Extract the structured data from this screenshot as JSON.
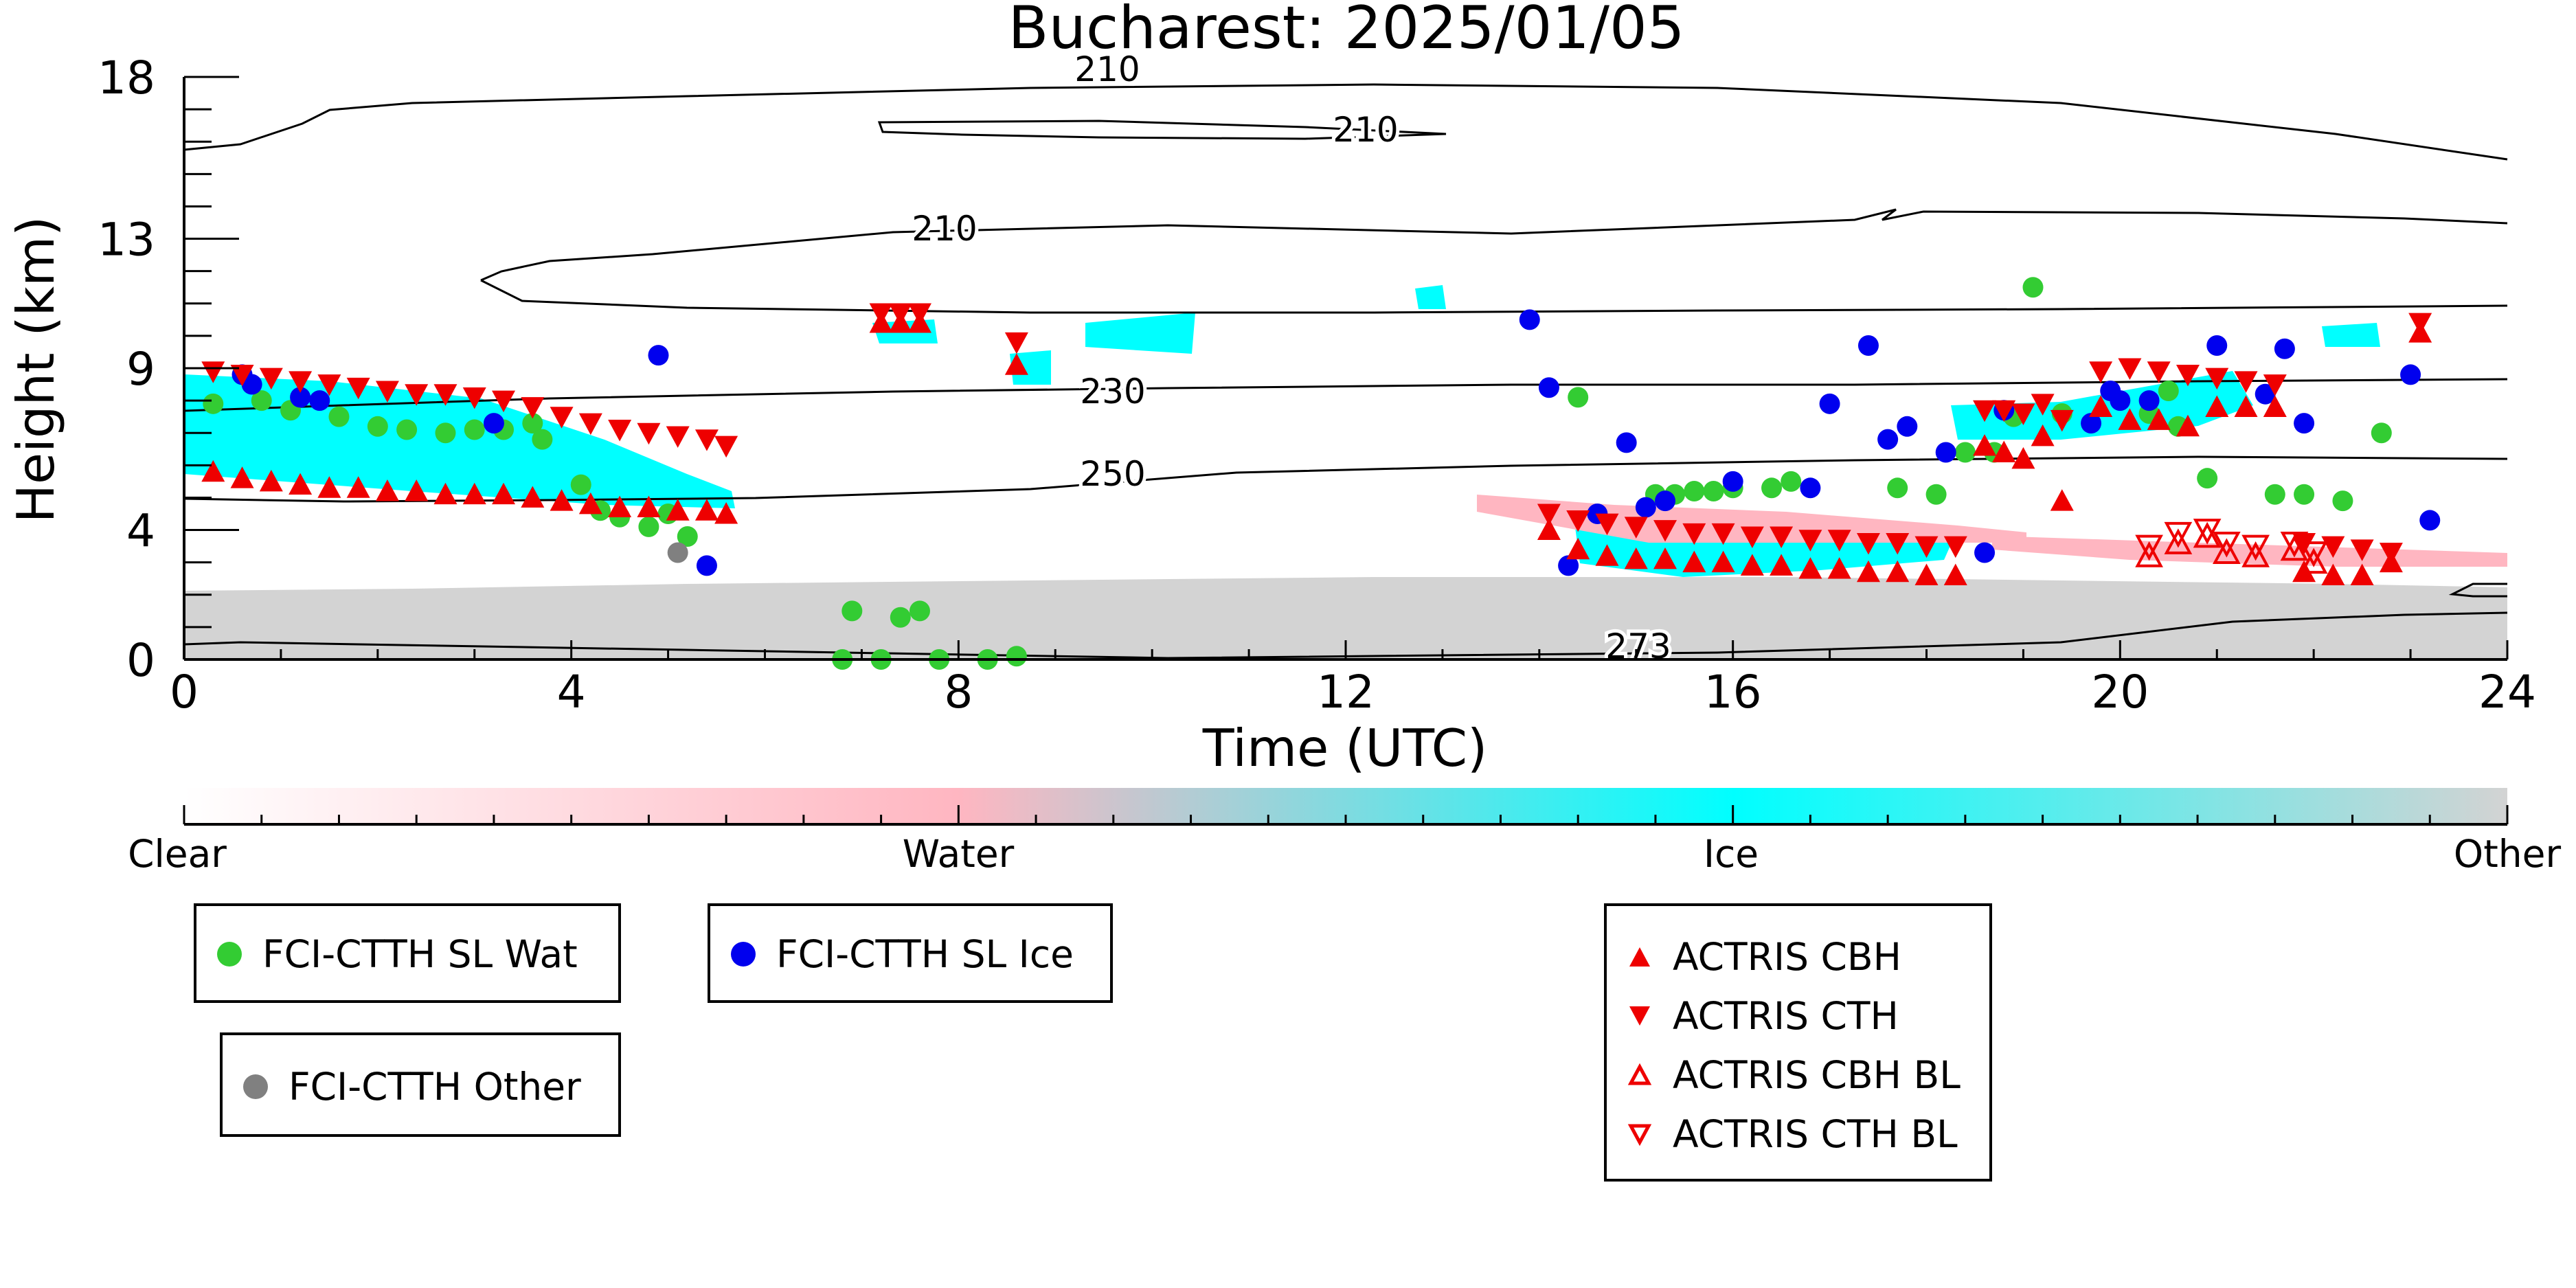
{
  "chart_data": {
    "type": "scatter",
    "title": "Bucharest: 2025/01/05",
    "xlabel": "Time (UTC)",
    "ylabel": "Height (km)",
    "xlim": [
      0,
      24
    ],
    "ylim": [
      0,
      18
    ],
    "x_ticks": [
      0,
      4,
      8,
      12,
      16,
      20,
      24
    ],
    "y_ticks": [
      0,
      4,
      9,
      13,
      18
    ],
    "grid": false,
    "colorbar": {
      "labels": [
        "Clear",
        "Water",
        "Ice",
        "Other"
      ],
      "colors": [
        "#ffffff",
        "#ffb6c1",
        "#00ffff",
        "#d3d3d3"
      ]
    },
    "contour_labels": [
      "210",
      "210",
      "210",
      "230",
      "250",
      "273"
    ],
    "series": [
      {
        "name": "FCI-CTTH SL Wat",
        "color": "#33cc33",
        "marker": "circle",
        "points": [
          [
            0.3,
            7.9
          ],
          [
            0.8,
            8.0
          ],
          [
            1.1,
            7.7
          ],
          [
            1.6,
            7.5
          ],
          [
            2.0,
            7.2
          ],
          [
            2.3,
            7.1
          ],
          [
            2.7,
            7.0
          ],
          [
            3.0,
            7.1
          ],
          [
            3.3,
            7.1
          ],
          [
            3.6,
            7.3
          ],
          [
            3.7,
            6.8
          ],
          [
            4.1,
            5.4
          ],
          [
            4.3,
            4.6
          ],
          [
            4.5,
            4.4
          ],
          [
            4.8,
            4.1
          ],
          [
            5.0,
            4.5
          ],
          [
            5.2,
            3.8
          ],
          [
            6.8,
            0.0
          ],
          [
            6.9,
            1.5
          ],
          [
            7.2,
            0.0
          ],
          [
            7.4,
            1.3
          ],
          [
            7.6,
            1.5
          ],
          [
            7.8,
            0.0
          ],
          [
            8.3,
            0.0
          ],
          [
            8.6,
            0.1
          ],
          [
            14.4,
            8.1
          ],
          [
            15.2,
            5.1
          ],
          [
            15.4,
            5.1
          ],
          [
            15.6,
            5.2
          ],
          [
            15.8,
            5.2
          ],
          [
            16.0,
            5.3
          ],
          [
            16.4,
            5.3
          ],
          [
            16.6,
            5.5
          ],
          [
            17.7,
            5.3
          ],
          [
            18.1,
            5.1
          ],
          [
            18.4,
            6.4
          ],
          [
            18.7,
            6.4
          ],
          [
            18.9,
            7.5
          ],
          [
            19.1,
            11.5
          ],
          [
            19.4,
            7.6
          ],
          [
            20.3,
            7.6
          ],
          [
            20.5,
            8.3
          ],
          [
            20.6,
            7.2
          ],
          [
            20.9,
            5.6
          ],
          [
            21.6,
            5.1
          ],
          [
            21.9,
            5.1
          ],
          [
            22.3,
            4.9
          ],
          [
            22.7,
            7.0
          ]
        ]
      },
      {
        "name": "FCI-CTTH SL Ice",
        "color": "#0000ee",
        "marker": "circle",
        "points": [
          [
            0.6,
            8.8
          ],
          [
            0.7,
            8.5
          ],
          [
            1.2,
            8.1
          ],
          [
            1.4,
            8.0
          ],
          [
            3.2,
            7.3
          ],
          [
            4.9,
            9.4
          ],
          [
            5.4,
            2.9
          ],
          [
            13.9,
            10.5
          ],
          [
            14.1,
            8.4
          ],
          [
            14.3,
            2.9
          ],
          [
            14.6,
            4.5
          ],
          [
            14.9,
            6.7
          ],
          [
            15.1,
            4.7
          ],
          [
            15.3,
            4.9
          ],
          [
            16.0,
            5.5
          ],
          [
            16.8,
            5.3
          ],
          [
            17.0,
            7.9
          ],
          [
            17.4,
            9.7
          ],
          [
            17.6,
            6.8
          ],
          [
            17.8,
            7.2
          ],
          [
            18.2,
            6.4
          ],
          [
            18.6,
            3.3
          ],
          [
            18.8,
            7.7
          ],
          [
            19.7,
            7.3
          ],
          [
            19.9,
            8.3
          ],
          [
            20.0,
            8.0
          ],
          [
            20.3,
            8.0
          ],
          [
            21.0,
            9.7
          ],
          [
            21.5,
            8.2
          ],
          [
            21.7,
            9.6
          ],
          [
            21.9,
            7.3
          ],
          [
            23.0,
            8.8
          ],
          [
            23.2,
            4.3
          ]
        ]
      },
      {
        "name": "FCI-CTTH Other",
        "color": "#808080",
        "marker": "circle",
        "points": [
          [
            5.1,
            3.3
          ]
        ]
      },
      {
        "name": "ACTRIS CBH",
        "color": "#ee0000",
        "marker": "triangle-up",
        "points": [
          [
            0.3,
            5.8
          ],
          [
            0.6,
            5.6
          ],
          [
            0.9,
            5.5
          ],
          [
            1.2,
            5.4
          ],
          [
            1.5,
            5.3
          ],
          [
            1.8,
            5.3
          ],
          [
            2.1,
            5.2
          ],
          [
            2.4,
            5.2
          ],
          [
            2.7,
            5.1
          ],
          [
            3.0,
            5.1
          ],
          [
            3.3,
            5.1
          ],
          [
            3.6,
            5.0
          ],
          [
            3.9,
            4.9
          ],
          [
            4.2,
            4.8
          ],
          [
            4.5,
            4.7
          ],
          [
            4.8,
            4.7
          ],
          [
            5.1,
            4.6
          ],
          [
            5.4,
            4.6
          ],
          [
            5.6,
            4.5
          ],
          [
            7.2,
            10.4
          ],
          [
            7.4,
            10.4
          ],
          [
            7.6,
            10.4
          ],
          [
            8.6,
            9.1
          ],
          [
            14.1,
            4.0
          ],
          [
            14.4,
            3.4
          ],
          [
            14.7,
            3.2
          ],
          [
            15.0,
            3.1
          ],
          [
            15.3,
            3.1
          ],
          [
            15.6,
            3.0
          ],
          [
            15.9,
            3.0
          ],
          [
            16.2,
            2.9
          ],
          [
            16.5,
            2.9
          ],
          [
            16.8,
            2.8
          ],
          [
            17.1,
            2.8
          ],
          [
            17.4,
            2.7
          ],
          [
            17.7,
            2.7
          ],
          [
            18.0,
            2.6
          ],
          [
            18.3,
            2.6
          ],
          [
            18.6,
            6.6
          ],
          [
            18.8,
            6.4
          ],
          [
            19.0,
            6.2
          ],
          [
            19.2,
            6.9
          ],
          [
            19.4,
            4.9
          ],
          [
            19.8,
            7.8
          ],
          [
            20.1,
            7.4
          ],
          [
            20.4,
            7.4
          ],
          [
            20.7,
            7.2
          ],
          [
            21.0,
            7.8
          ],
          [
            21.3,
            7.8
          ],
          [
            21.6,
            7.8
          ],
          [
            21.9,
            2.7
          ],
          [
            22.2,
            2.6
          ],
          [
            22.5,
            2.6
          ],
          [
            22.8,
            3.0
          ],
          [
            23.1,
            10.1
          ]
        ]
      },
      {
        "name": "ACTRIS CTH",
        "color": "#ee0000",
        "marker": "triangle-down",
        "points": [
          [
            0.3,
            8.9
          ],
          [
            0.6,
            8.8
          ],
          [
            0.9,
            8.7
          ],
          [
            1.2,
            8.6
          ],
          [
            1.5,
            8.5
          ],
          [
            1.8,
            8.4
          ],
          [
            2.1,
            8.3
          ],
          [
            2.4,
            8.2
          ],
          [
            2.7,
            8.2
          ],
          [
            3.0,
            8.1
          ],
          [
            3.3,
            8.0
          ],
          [
            3.6,
            7.8
          ],
          [
            3.9,
            7.5
          ],
          [
            4.2,
            7.3
          ],
          [
            4.5,
            7.1
          ],
          [
            4.8,
            7.0
          ],
          [
            5.1,
            6.9
          ],
          [
            5.4,
            6.8
          ],
          [
            5.6,
            6.6
          ],
          [
            7.2,
            10.7
          ],
          [
            7.4,
            10.7
          ],
          [
            7.6,
            10.7
          ],
          [
            8.6,
            9.8
          ],
          [
            14.1,
            4.5
          ],
          [
            14.4,
            4.3
          ],
          [
            14.7,
            4.2
          ],
          [
            15.0,
            4.1
          ],
          [
            15.3,
            4.0
          ],
          [
            15.6,
            3.9
          ],
          [
            15.9,
            3.9
          ],
          [
            16.2,
            3.8
          ],
          [
            16.5,
            3.8
          ],
          [
            16.8,
            3.7
          ],
          [
            17.1,
            3.7
          ],
          [
            17.4,
            3.6
          ],
          [
            17.7,
            3.6
          ],
          [
            18.0,
            3.5
          ],
          [
            18.3,
            3.5
          ],
          [
            18.6,
            7.7
          ],
          [
            18.8,
            7.7
          ],
          [
            19.0,
            7.6
          ],
          [
            19.2,
            7.9
          ],
          [
            19.4,
            7.4
          ],
          [
            19.8,
            8.9
          ],
          [
            20.1,
            9.0
          ],
          [
            20.4,
            8.9
          ],
          [
            20.7,
            8.8
          ],
          [
            21.0,
            8.7
          ],
          [
            21.3,
            8.6
          ],
          [
            21.6,
            8.5
          ],
          [
            21.9,
            3.6
          ],
          [
            22.2,
            3.5
          ],
          [
            22.5,
            3.4
          ],
          [
            22.8,
            3.3
          ],
          [
            23.1,
            10.4
          ]
        ]
      },
      {
        "name": "ACTRIS CBH BL",
        "color": "#ee0000",
        "marker": "triangle-up-open",
        "points": [
          [
            20.3,
            3.2
          ],
          [
            20.6,
            3.6
          ],
          [
            20.9,
            3.8
          ],
          [
            21.1,
            3.3
          ],
          [
            21.4,
            3.2
          ],
          [
            21.8,
            3.4
          ],
          [
            22.0,
            3.0
          ]
        ]
      },
      {
        "name": "ACTRIS CTH BL",
        "color": "#ee0000",
        "marker": "triangle-down-open",
        "points": [
          [
            20.3,
            3.5
          ],
          [
            20.6,
            3.9
          ],
          [
            20.9,
            4.0
          ],
          [
            21.1,
            3.6
          ],
          [
            21.4,
            3.5
          ],
          [
            21.8,
            3.6
          ],
          [
            22.0,
            3.3
          ]
        ]
      }
    ]
  }
}
